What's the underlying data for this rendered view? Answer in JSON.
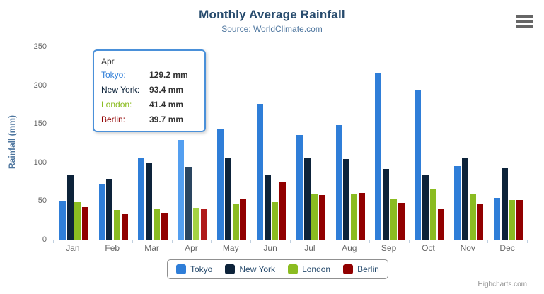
{
  "chart": {
    "title": "Monthly Average Rainfall",
    "subtitle": "Source: WorldClimate.com",
    "y_axis_title": "Rainfall (mm)",
    "credits": "Highcharts.com"
  },
  "chart_data": {
    "type": "bar",
    "title": "Monthly Average Rainfall",
    "subtitle": "Source: WorldClimate.com",
    "categories": [
      "Jan",
      "Feb",
      "Mar",
      "Apr",
      "May",
      "Jun",
      "Jul",
      "Aug",
      "Sep",
      "Oct",
      "Nov",
      "Dec"
    ],
    "series": [
      {
        "name": "Tokyo",
        "color": "#2f7ed8",
        "hover_color": "#549ff0",
        "values": [
          49.9,
          71.5,
          106.4,
          129.2,
          144.0,
          176.0,
          135.6,
          148.5,
          216.4,
          194.1,
          95.6,
          54.4
        ]
      },
      {
        "name": "New York",
        "color": "#0d233a",
        "hover_color": "#2a4560",
        "values": [
          83.6,
          78.8,
          98.5,
          93.4,
          106.0,
          84.5,
          105.0,
          104.3,
          91.2,
          83.5,
          106.6,
          92.3
        ]
      },
      {
        "name": "London",
        "color": "#8bbc21",
        "hover_color": "#a4d343",
        "values": [
          48.9,
          38.8,
          39.3,
          41.4,
          47.0,
          48.3,
          59.0,
          59.6,
          52.4,
          65.2,
          59.3,
          51.2
        ]
      },
      {
        "name": "Berlin",
        "color": "#910000",
        "hover_color": "#b01a1a",
        "values": [
          42.4,
          33.2,
          34.5,
          39.7,
          52.6,
          75.5,
          57.4,
          60.4,
          47.6,
          39.1,
          46.8,
          51.1
        ]
      }
    ],
    "xlabel": "",
    "ylabel": "Rainfall (mm)",
    "ylim": [
      0,
      250
    ],
    "y_ticks": [
      0,
      50,
      100,
      150,
      200,
      250
    ],
    "grid": true,
    "legend_position": "bottom",
    "hovered_category": "Apr",
    "hovered_category_index": 3
  },
  "tooltip": {
    "header": "Apr",
    "rows": [
      {
        "label": "Tokyo:",
        "value": "129.2 mm",
        "color": "#2f7ed8"
      },
      {
        "label": "New York:",
        "value": "93.4 mm",
        "color": "#0d233a"
      },
      {
        "label": "London:",
        "value": "41.4 mm",
        "color": "#8bbc21"
      },
      {
        "label": "Berlin:",
        "value": "39.7 mm",
        "color": "#910000"
      }
    ]
  },
  "legend": {
    "items": [
      {
        "label": "Tokyo",
        "color": "#2f7ed8"
      },
      {
        "label": "New York",
        "color": "#0d233a"
      },
      {
        "label": "London",
        "color": "#8bbc21"
      },
      {
        "label": "Berlin",
        "color": "#910000"
      }
    ]
  }
}
